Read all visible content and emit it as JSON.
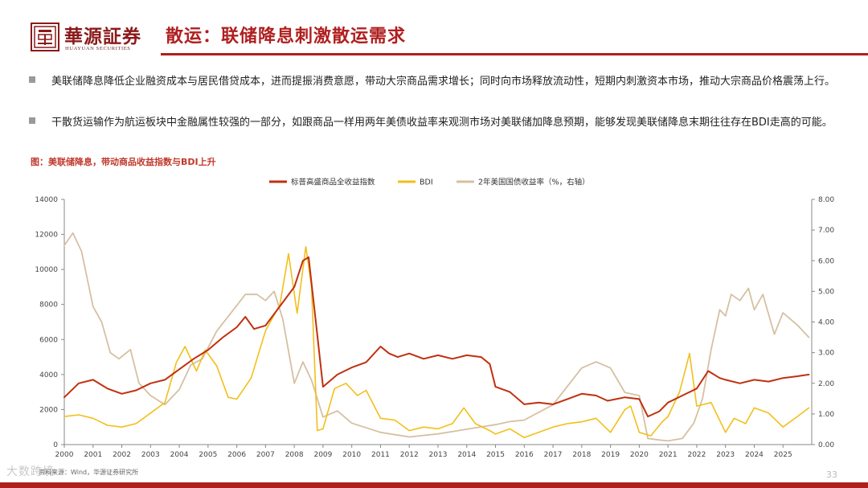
{
  "header": {
    "brand_name": "華源証券",
    "brand_sub": "HUAYUAN SECURITIES",
    "title": "散运：联储降息刺激散运需求"
  },
  "bullets": [
    "美联储降息降低企业融资成本与居民借贷成本，进而提振消费意愿，带动大宗商品需求增长；同时向市场释放流动性，短期内刺激资本市场，推动大宗商品价格震荡上行。",
    "干散货运输作为航运板块中金融属性较强的一部分，如跟商品一样用两年美债收益率来观测市场对美联储加降息预期，能够发现美联储降息末期往往存在BDI走高的可能。"
  ],
  "figure_caption": "图：美联储降息，带动商品收益指数与BDI上升",
  "colors": {
    "brand": "#b01f1f",
    "commodity": "#c0300f",
    "bdi": "#f2bf1a",
    "yield": "#d6c0a2"
  },
  "chart_data": {
    "type": "line",
    "title": "",
    "legend_position": "top-center",
    "x_ticks": [
      "2000",
      "2001",
      "2002",
      "2003",
      "2004",
      "2005",
      "2006",
      "2007",
      "2008",
      "2009",
      "2010",
      "2011",
      "2012",
      "2013",
      "2014",
      "2015",
      "2016",
      "2017",
      "2018",
      "2019",
      "2020",
      "2021",
      "2022",
      "2023",
      "2024",
      "2025"
    ],
    "xlim": [
      2000,
      2026
    ],
    "y_left": {
      "lim": [
        0,
        14000
      ],
      "ticks": [
        "0",
        "2000",
        "4000",
        "6000",
        "8000",
        "10000",
        "12000",
        "14000"
      ]
    },
    "y_right": {
      "lim": [
        0,
        8
      ],
      "ticks": [
        "0.00",
        "1.00",
        "2.00",
        "3.00",
        "4.00",
        "5.00",
        "6.00",
        "7.00",
        "8.00"
      ]
    },
    "grid": false,
    "series": [
      {
        "name": "标普高盛商品全收益指数",
        "axis": "left",
        "x": [
          2000,
          2000.5,
          2001,
          2001.5,
          2002,
          2002.5,
          2003,
          2003.5,
          2004,
          2004.5,
          2005,
          2005.5,
          2006,
          2006.3,
          2006.6,
          2007,
          2007.5,
          2008,
          2008.3,
          2008.5,
          2008.75,
          2009,
          2009.5,
          2010,
          2010.5,
          2011,
          2011.3,
          2011.6,
          2012,
          2012.5,
          2013,
          2013.5,
          2014,
          2014.5,
          2014.8,
          2015,
          2015.5,
          2016,
          2016.5,
          2017,
          2017.5,
          2018,
          2018.5,
          2018.9,
          2019.5,
          2020,
          2020.3,
          2020.7,
          2021,
          2021.5,
          2022,
          2022.4,
          2022.8,
          2023,
          2023.5,
          2024,
          2024.5,
          2025,
          2025.5,
          2025.9
        ],
        "y": [
          2700,
          3500,
          3700,
          3200,
          2900,
          3100,
          3500,
          3700,
          4300,
          4900,
          5400,
          6100,
          6700,
          7300,
          6600,
          6800,
          7900,
          9000,
          10500,
          10700,
          7000,
          3300,
          4000,
          4400,
          4700,
          5600,
          5200,
          5000,
          5200,
          4900,
          5100,
          4900,
          5100,
          5000,
          4600,
          3300,
          3000,
          2300,
          2400,
          2300,
          2600,
          2900,
          2800,
          2500,
          2700,
          2600,
          1600,
          1900,
          2400,
          2800,
          3200,
          4200,
          3800,
          3700,
          3500,
          3700,
          3600,
          3800,
          3900,
          4000
        ]
      },
      {
        "name": "BDI",
        "axis": "left",
        "x": [
          2000,
          2000.5,
          2001,
          2001.5,
          2002,
          2002.5,
          2003,
          2003.5,
          2003.9,
          2004.2,
          2004.6,
          2004.9,
          2005.3,
          2005.7,
          2006,
          2006.5,
          2007,
          2007.5,
          2007.8,
          2008.1,
          2008.4,
          2008.6,
          2008.8,
          2009,
          2009.4,
          2009.8,
          2010.2,
          2010.5,
          2011,
          2011.5,
          2012,
          2012.5,
          2013,
          2013.5,
          2013.9,
          2014.3,
          2014.8,
          2015,
          2015.5,
          2016,
          2016.5,
          2017,
          2017.5,
          2018,
          2018.5,
          2019,
          2019.5,
          2019.7,
          2020,
          2020.4,
          2020.8,
          2021,
          2021.4,
          2021.75,
          2022,
          2022.5,
          2023,
          2023.3,
          2023.7,
          2024,
          2024.5,
          2025,
          2025.5,
          2025.9
        ],
        "y": [
          1600,
          1700,
          1500,
          1100,
          1000,
          1200,
          1800,
          2400,
          4700,
          5600,
          4200,
          5400,
          4500,
          2700,
          2600,
          3800,
          6500,
          8000,
          10900,
          7500,
          11300,
          9000,
          800,
          900,
          3200,
          3500,
          2800,
          3100,
          1500,
          1400,
          800,
          1000,
          900,
          1200,
          2100,
          1200,
          800,
          600,
          900,
          400,
          700,
          1000,
          1200,
          1300,
          1500,
          700,
          2000,
          2200,
          700,
          500,
          1300,
          1600,
          3000,
          5200,
          2200,
          2400,
          700,
          1500,
          1200,
          2100,
          1800,
          1000,
          1600,
          2100
        ]
      },
      {
        "name": "2年美国国债收益率（%，右轴）",
        "axis": "right",
        "x": [
          2000,
          2000.3,
          2000.6,
          2001,
          2001.3,
          2001.6,
          2001.9,
          2002.3,
          2002.6,
          2003,
          2003.5,
          2004,
          2004.4,
          2004.8,
          2005.3,
          2005.8,
          2006.3,
          2006.7,
          2007,
          2007.3,
          2007.6,
          2008,
          2008.3,
          2008.6,
          2009,
          2009.5,
          2010,
          2011,
          2012,
          2013,
          2014,
          2015,
          2015.5,
          2016,
          2017,
          2018,
          2018.5,
          2019,
          2019.5,
          2020,
          2020.3,
          2020.7,
          2021,
          2021.5,
          2021.9,
          2022.2,
          2022.5,
          2022.8,
          2023,
          2023.2,
          2023.5,
          2023.8,
          2024,
          2024.3,
          2024.7,
          2025,
          2025.5,
          2025.9
        ],
        "y": [
          6.5,
          6.9,
          6.3,
          4.5,
          4.0,
          3.0,
          2.8,
          3.1,
          2.0,
          1.6,
          1.3,
          1.8,
          2.6,
          2.8,
          3.7,
          4.3,
          4.9,
          4.9,
          4.7,
          5.0,
          4.1,
          2.0,
          2.7,
          2.1,
          0.9,
          1.1,
          0.7,
          0.4,
          0.25,
          0.35,
          0.5,
          0.65,
          0.75,
          0.8,
          1.3,
          2.5,
          2.7,
          2.5,
          1.7,
          1.6,
          0.2,
          0.15,
          0.12,
          0.2,
          0.7,
          1.5,
          3.1,
          4.4,
          4.2,
          4.9,
          4.7,
          5.1,
          4.4,
          4.9,
          3.6,
          4.3,
          3.9,
          3.5
        ]
      }
    ]
  },
  "footer": {
    "source": "资料来源：Wind，华源证券研究所",
    "page": "33",
    "watermark": "大数跨境"
  }
}
